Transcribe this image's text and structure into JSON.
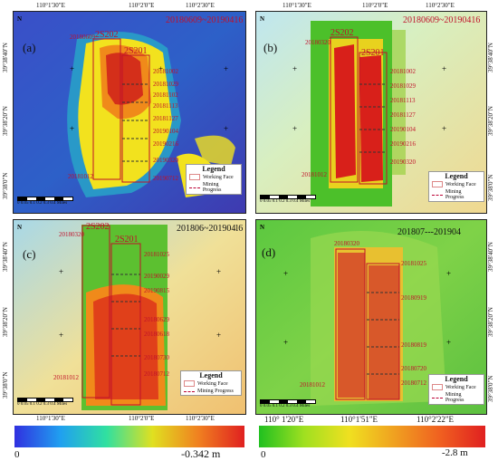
{
  "panels": {
    "a": {
      "label": "(a)",
      "date_range": "20180609~20190416",
      "faces": [
        "2S202",
        "2S201"
      ],
      "progress_dates": [
        "20180609",
        "20181002",
        "20181029",
        "20181102",
        "20181113",
        "20181127",
        "20190104",
        "20190216",
        "20190320",
        "20190712",
        "20181012"
      ],
      "top_ticks": [
        "110°1'30\"E",
        "110°2'0\"E",
        "110°2'30\"E"
      ],
      "bottom_ticks": [],
      "left_ticks": [
        "39°38'40\"N",
        "39°38'20\"N",
        "39°38'0\"N"
      ],
      "right_ticks": []
    },
    "b": {
      "label": "(b)",
      "date_range": "20180609~20190416",
      "faces": [
        "2S202",
        "2S201"
      ],
      "progress_dates": [
        "20180320",
        "20181002",
        "20181029",
        "20181113",
        "20181127",
        "20190104",
        "20190216",
        "20190320",
        "20181012"
      ],
      "top_ticks": [
        "110°1'30\"E",
        "110°2'0\"E",
        "110°2'30\"E"
      ],
      "right_ticks": [
        "39°38'40\"N",
        "39°38'20\"N",
        "39°38'0\"N"
      ]
    },
    "c": {
      "label": "(c)",
      "date_range": "201806~201904l6",
      "faces": [
        "2S202",
        "2S201"
      ],
      "progress_dates": [
        "20180320",
        "20181025",
        "20190029",
        "20190815",
        "20180629",
        "20180618",
        "20180730",
        "20180712",
        "20181012"
      ],
      "bottom_ticks": [
        "110°1'30\"E",
        "110°2'0\"E",
        "110°2'30\"E"
      ],
      "left_ticks": [
        "39°38'40\"N",
        "39°38'20\"N",
        "39°38'0\"N"
      ]
    },
    "d": {
      "label": "(d)",
      "date_range": "201807---201904",
      "progress_dates": [
        "20180320",
        "20181025",
        "20180919",
        "20180819",
        "20180720",
        "20180712",
        "20181012"
      ],
      "bottom_ticks": [
        "110° 1'20\"E",
        "110°1'51\"E",
        "110°2'22\"E"
      ],
      "right_ticks": [
        "39°38'40\"N",
        "39°38'20\"N",
        "39°38'0\"N"
      ]
    }
  },
  "legend": {
    "title": "Legend",
    "working_face": "Working Face",
    "mining_progress": "Mining Progress"
  },
  "north": "N",
  "scale_text": "0 0.05 0.1  0.2  0.3  0.4",
  "scale_unit": "Miles",
  "colorbars": {
    "left": {
      "min": "0",
      "max": "-0.342 m"
    },
    "right": {
      "min": "0",
      "max": "-2.8 m"
    }
  }
}
